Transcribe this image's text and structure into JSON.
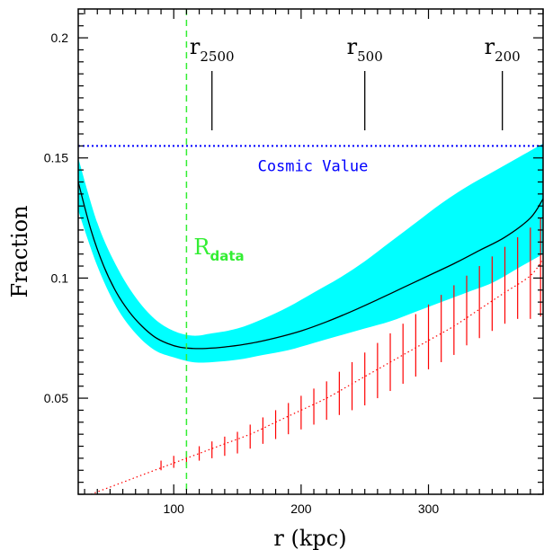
{
  "chart_data": {
    "type": "line",
    "xlabel": "r (kpc)",
    "ylabel": "Fraction",
    "xlim": [
      25,
      390
    ],
    "ylim": [
      0.01,
      0.212
    ],
    "x_ticks": [
      100,
      200,
      300
    ],
    "y_ticks": [
      0.05,
      0.1,
      0.15,
      0.2
    ],
    "x_tick_labels": [
      "100",
      "200",
      "300"
    ],
    "y_tick_labels": [
      "0.05",
      "0.1",
      "0.15",
      "0.2"
    ],
    "grid": false,
    "colors": {
      "band": "#00ffff",
      "model": "#000000",
      "points": "#ff0000",
      "cosmic": "#0000ff",
      "rdata": "#33ee33"
    },
    "cosmic_value": {
      "label": "Cosmic Value",
      "y": 0.155
    },
    "r_data": {
      "label_main": "R",
      "label_sub": "data",
      "x": 110
    },
    "radius_markers": [
      {
        "main": "r",
        "sub": "2500",
        "x": 130
      },
      {
        "main": "r",
        "sub": "500",
        "x": 250
      },
      {
        "main": "r",
        "sub": "200",
        "x": 358
      }
    ],
    "series": [
      {
        "kind": "band",
        "x": [
          25,
          40,
          55,
          70,
          85,
          100,
          115,
          130,
          150,
          170,
          190,
          210,
          230,
          250,
          270,
          290,
          310,
          330,
          350,
          370,
          390
        ],
        "lower": [
          0.128,
          0.105,
          0.088,
          0.077,
          0.07,
          0.067,
          0.065,
          0.065,
          0.066,
          0.068,
          0.07,
          0.073,
          0.076,
          0.079,
          0.082,
          0.086,
          0.09,
          0.094,
          0.098,
          0.104,
          0.11
        ],
        "upper": [
          0.15,
          0.123,
          0.105,
          0.092,
          0.083,
          0.078,
          0.076,
          0.077,
          0.079,
          0.083,
          0.088,
          0.094,
          0.1,
          0.107,
          0.115,
          0.123,
          0.131,
          0.138,
          0.144,
          0.15,
          0.156
        ]
      },
      {
        "kind": "line",
        "x": [
          25,
          35,
          45,
          55,
          65,
          75,
          85,
          95,
          105,
          115,
          125,
          140,
          160,
          180,
          200,
          220,
          240,
          260,
          280,
          300,
          320,
          340,
          360,
          380,
          390
        ],
        "y": [
          0.14,
          0.12,
          0.105,
          0.094,
          0.086,
          0.08,
          0.0755,
          0.0728,
          0.0712,
          0.0707,
          0.0707,
          0.0713,
          0.0728,
          0.0751,
          0.078,
          0.0818,
          0.0862,
          0.091,
          0.096,
          0.101,
          0.106,
          0.1115,
          0.117,
          0.125,
          0.133
        ]
      },
      {
        "kind": "dotted",
        "x": [
          35,
          60,
          80,
          100,
          120,
          140,
          160,
          180,
          200,
          220,
          240,
          260,
          280,
          300,
          320,
          340,
          360,
          380,
          390
        ],
        "y": [
          0.01,
          0.015,
          0.019,
          0.023,
          0.027,
          0.031,
          0.035,
          0.04,
          0.045,
          0.05,
          0.056,
          0.062,
          0.068,
          0.074,
          0.08,
          0.087,
          0.094,
          0.101,
          0.108
        ]
      },
      {
        "kind": "errorbars",
        "x": [
          90,
          100,
          110,
          120,
          130,
          140,
          150,
          160,
          170,
          180,
          190,
          200,
          210,
          220,
          230,
          240,
          250,
          260,
          270,
          280,
          290,
          300,
          310,
          320,
          330,
          340,
          350,
          360,
          370,
          380,
          388
        ],
        "ylow": [
          0.02,
          0.021,
          0.022,
          0.024,
          0.025,
          0.026,
          0.027,
          0.029,
          0.031,
          0.033,
          0.035,
          0.037,
          0.039,
          0.041,
          0.043,
          0.045,
          0.047,
          0.05,
          0.053,
          0.056,
          0.059,
          0.062,
          0.065,
          0.068,
          0.072,
          0.075,
          0.078,
          0.081,
          0.083,
          0.083,
          0.084
        ],
        "yhigh": [
          0.024,
          0.026,
          0.028,
          0.03,
          0.032,
          0.034,
          0.036,
          0.039,
          0.042,
          0.045,
          0.048,
          0.051,
          0.054,
          0.057,
          0.061,
          0.065,
          0.069,
          0.073,
          0.077,
          0.081,
          0.085,
          0.089,
          0.093,
          0.097,
          0.101,
          0.105,
          0.109,
          0.113,
          0.117,
          0.121,
          0.125
        ]
      }
    ]
  }
}
